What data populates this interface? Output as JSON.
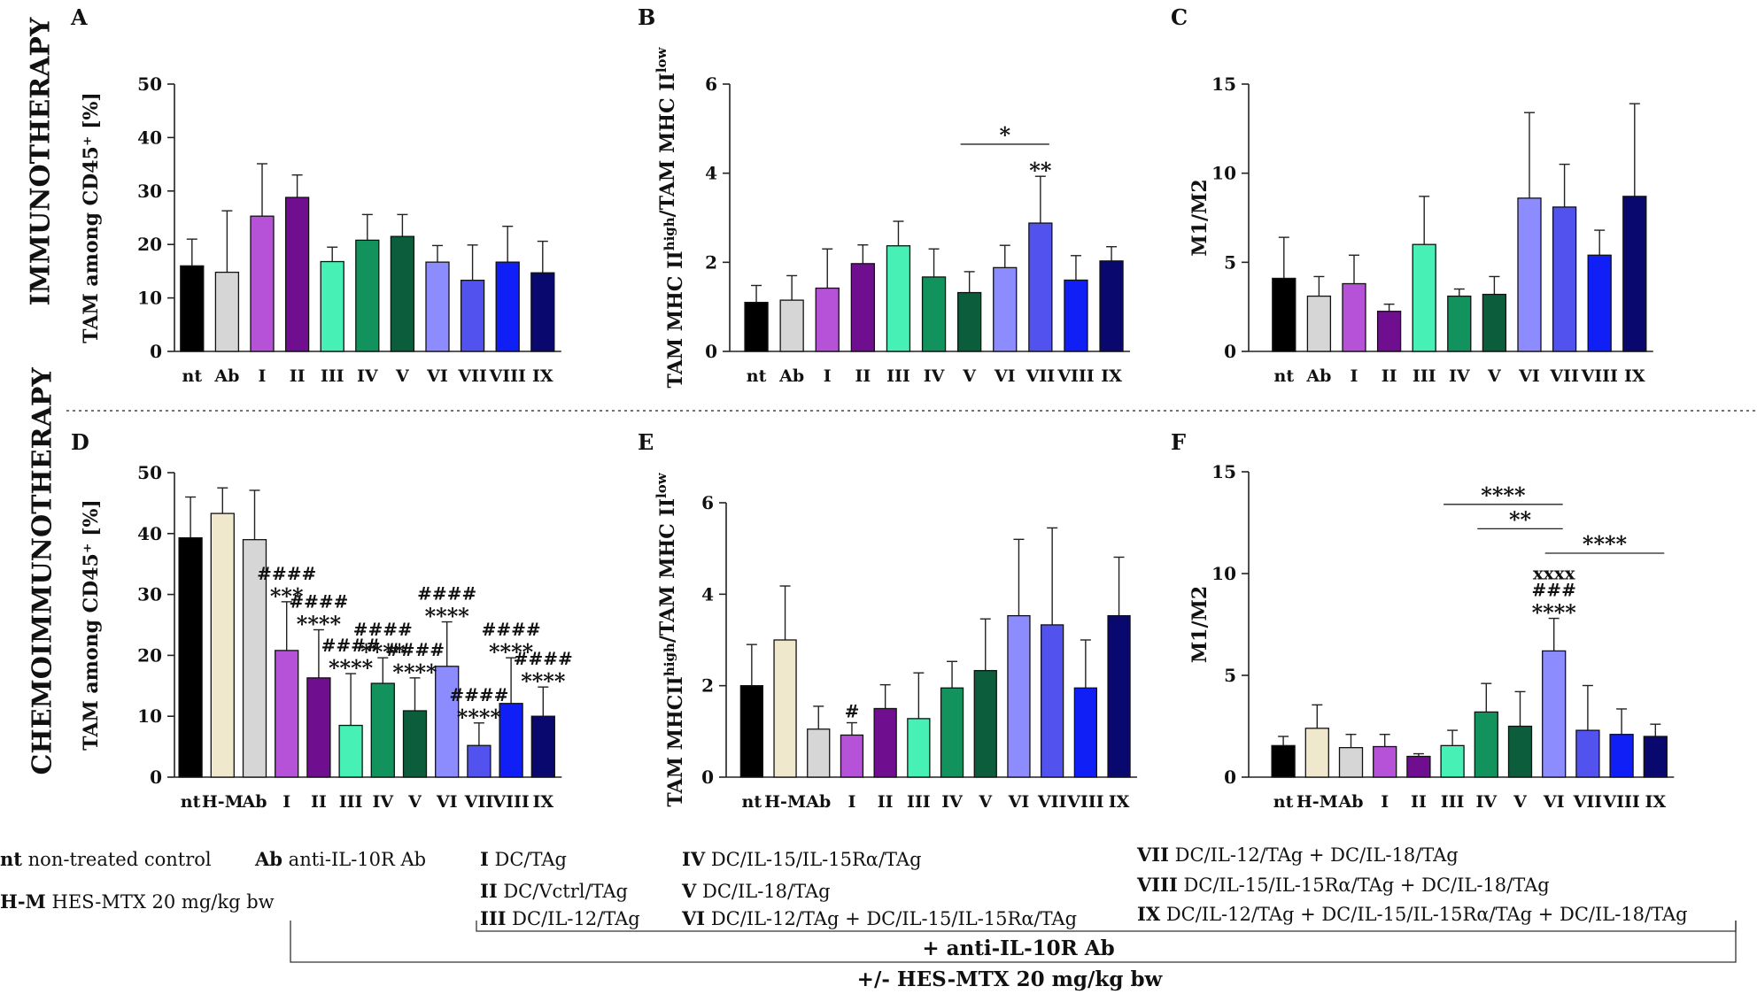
{
  "section_labels": {
    "top": "IMMUNOTHERAPY",
    "bottom": "CHEMOIMMUNOTHERAPY"
  },
  "colors": {
    "nt": "#000000",
    "H-M": "#efe8cc",
    "Ab": "#d6d6d6",
    "I": "#b552d8",
    "II": "#6f0f8f",
    "III": "#47f0b4",
    "IV": "#12935d",
    "V": "#0b5d3c",
    "VI": "#8c8cff",
    "VII": "#5252ee",
    "VIII": "#0f1ff5",
    "IX": "#08086e"
  },
  "chart_data": [
    {
      "panel": "A",
      "type": "bar",
      "ylabel": "TAM among CD45⁺ [%]",
      "ylim": [
        0,
        50
      ],
      "yticks": [
        0,
        10,
        20,
        30,
        40,
        50
      ],
      "categories": [
        "nt",
        "Ab",
        "I",
        "II",
        "III",
        "IV",
        "V",
        "VI",
        "VII",
        "VIII",
        "IX"
      ],
      "values": [
        16,
        14.8,
        25.3,
        28.8,
        16.8,
        20.8,
        21.5,
        16.7,
        13.3,
        16.7,
        14.7
      ],
      "errors": [
        5,
        11.5,
        9.8,
        4.2,
        2.7,
        4.8,
        4.1,
        3.1,
        6.6,
        6.7,
        5.9
      ],
      "annotations": [],
      "brackets": []
    },
    {
      "panel": "B",
      "type": "bar",
      "ylabel": "TAM MHC II^high/TAM MHC II^low",
      "ylim": [
        0,
        6
      ],
      "yticks": [
        0,
        2,
        4,
        6
      ],
      "categories": [
        "nt",
        "Ab",
        "I",
        "II",
        "III",
        "IV",
        "V",
        "VI",
        "VII",
        "VIII",
        "IX"
      ],
      "values": [
        1.1,
        1.15,
        1.42,
        1.97,
        2.37,
        1.67,
        1.32,
        1.88,
        2.88,
        1.6,
        2.03
      ],
      "errors": [
        0.38,
        0.55,
        0.88,
        0.42,
        0.55,
        0.63,
        0.47,
        0.5,
        1.05,
        0.55,
        0.32
      ],
      "annotations": [
        {
          "bar": 8,
          "lines": [
            "**"
          ]
        }
      ],
      "brackets": [
        {
          "from": 6,
          "to": 8,
          "y": 4.65,
          "label": "*"
        }
      ]
    },
    {
      "panel": "C",
      "type": "bar",
      "ylabel": "M1/M2",
      "ylim": [
        0,
        15
      ],
      "yticks": [
        0,
        5,
        10,
        15
      ],
      "categories": [
        "nt",
        "Ab",
        "I",
        "II",
        "III",
        "IV",
        "V",
        "VI",
        "VII",
        "VIII",
        "IX"
      ],
      "values": [
        4.1,
        3.1,
        3.8,
        2.25,
        6.0,
        3.1,
        3.2,
        8.6,
        8.1,
        5.4,
        8.7
      ],
      "errors": [
        2.3,
        1.1,
        1.6,
        0.4,
        2.7,
        0.4,
        1.0,
        4.8,
        2.4,
        1.4,
        5.2
      ],
      "annotations": [],
      "brackets": []
    },
    {
      "panel": "D",
      "type": "bar",
      "ylabel": "TAM among CD45⁺ [%]",
      "ylim": [
        0,
        50
      ],
      "yticks": [
        0,
        10,
        20,
        30,
        40,
        50
      ],
      "categories": [
        "nt",
        "H-M",
        "Ab",
        "I",
        "II",
        "III",
        "IV",
        "V",
        "VI",
        "VII",
        "VIII",
        "IX"
      ],
      "values": [
        39.3,
        43.3,
        39,
        20.8,
        16.3,
        8.5,
        15.4,
        10.9,
        18.2,
        5.2,
        12.1,
        10
      ],
      "errors": [
        6.7,
        4.2,
        8.1,
        8.0,
        7.9,
        8.5,
        4.2,
        5.4,
        7.3,
        3.7,
        7.5,
        4.8
      ],
      "annotations": [
        {
          "bar": 3,
          "lines": [
            "####",
            "***"
          ]
        },
        {
          "bar": 4,
          "lines": [
            "####",
            "****"
          ]
        },
        {
          "bar": 5,
          "lines": [
            "####",
            "****"
          ]
        },
        {
          "bar": 6,
          "lines": [
            "####",
            "****"
          ]
        },
        {
          "bar": 7,
          "lines": [
            "####",
            "****"
          ]
        },
        {
          "bar": 8,
          "lines": [
            "####",
            "****"
          ]
        },
        {
          "bar": 9,
          "lines": [
            "####",
            "****"
          ]
        },
        {
          "bar": 10,
          "lines": [
            "####",
            "****"
          ]
        },
        {
          "bar": 11,
          "lines": [
            "####",
            "****"
          ]
        }
      ],
      "brackets": []
    },
    {
      "panel": "E",
      "type": "bar",
      "ylabel": "TAM MHCII^high/TAM MHC II^low",
      "ylim": [
        0,
        6
      ],
      "yticks": [
        0,
        2,
        4,
        6
      ],
      "categories": [
        "nt",
        "H-M",
        "Ab",
        "I",
        "II",
        "III",
        "IV",
        "V",
        "VI",
        "VII",
        "VIII",
        "IX"
      ],
      "values": [
        2.0,
        3.0,
        1.05,
        0.92,
        1.5,
        1.28,
        1.95,
        2.33,
        3.53,
        3.33,
        1.95,
        3.53
      ],
      "errors": [
        0.9,
        1.18,
        0.5,
        0.27,
        0.52,
        1.0,
        0.58,
        1.13,
        1.67,
        2.12,
        1.05,
        1.28
      ],
      "annotations": [
        {
          "bar": 3,
          "lines": [
            "#"
          ]
        }
      ],
      "brackets": []
    },
    {
      "panel": "F",
      "type": "bar",
      "ylabel": "M1/M2",
      "ylim": [
        0,
        15
      ],
      "yticks": [
        0,
        5,
        10,
        15
      ],
      "categories": [
        "nt",
        "H-M",
        "Ab",
        "I",
        "II",
        "III",
        "IV",
        "V",
        "VI",
        "VII",
        "VIII",
        "IX"
      ],
      "values": [
        1.55,
        2.4,
        1.45,
        1.5,
        1.02,
        1.55,
        3.2,
        2.5,
        6.2,
        2.3,
        2.1,
        2.0
      ],
      "errors": [
        0.45,
        1.15,
        0.65,
        0.6,
        0.13,
        0.75,
        1.4,
        1.7,
        1.6,
        2.2,
        1.25,
        0.6
      ],
      "annotations": [
        {
          "bar": 8,
          "lines": [
            "xxxx",
            "###",
            "****"
          ]
        }
      ],
      "brackets": [
        {
          "from": 5,
          "to": 8,
          "y": 13.4,
          "label": "****"
        },
        {
          "from": 6,
          "to": 8,
          "y": 12.2,
          "label": "**"
        },
        {
          "from": 8,
          "to": 11,
          "y": 11.0,
          "label": "****"
        }
      ]
    }
  ],
  "legend": {
    "nt": {
      "abbr": "nt",
      "text": "non-treated control"
    },
    "ab": {
      "abbr": "Ab",
      "text": "anti-IL-10R  Ab"
    },
    "hm": {
      "abbr": "H-M",
      "text": "HES-MTX 20 mg/kg bw"
    },
    "g1": {
      "abbr": "I",
      "text": "DC/TAg"
    },
    "g2": {
      "abbr": "II",
      "text": "DC/Vctrl/TAg"
    },
    "g3": {
      "abbr": "III",
      "text": "DC/IL-12/TAg"
    },
    "g4": {
      "abbr": "IV",
      "text": "DC/IL-15/IL-15Rα/TAg"
    },
    "g5": {
      "abbr": "V",
      "text": "DC/IL-18/TAg"
    },
    "g6": {
      "abbr": "VI",
      "text": "DC/IL-12/TAg + DC/IL-15/IL-15Rα/TAg"
    },
    "g7": {
      "abbr": "VII",
      "text": "DC/IL-12/TAg + DC/IL-18/TAg"
    },
    "g8": {
      "abbr": "VIII",
      "text": "DC/IL-15/IL-15Rα/TAg + DC/IL-18/TAg"
    },
    "g9": {
      "abbr": "IX",
      "text": "DC/IL-12/TAg + DC/IL-15/IL-15Rα/TAg + DC/IL-18/TAg"
    }
  },
  "brackets_text": {
    "inner": "+ anti-IL-10R Ab",
    "outer": "+/- HES-MTX 20 mg/kg bw"
  }
}
